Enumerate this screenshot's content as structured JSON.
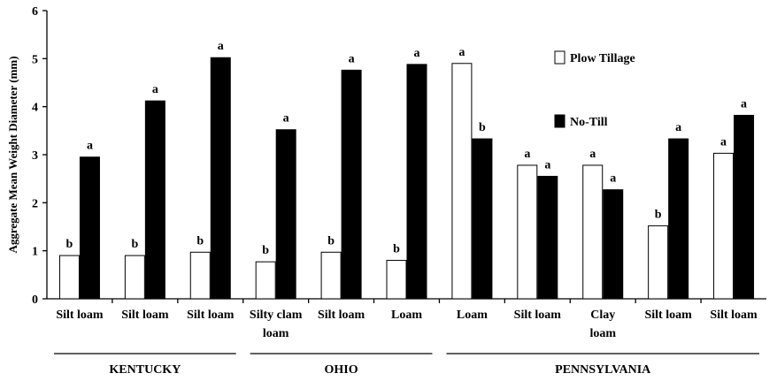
{
  "chart_data": {
    "type": "bar",
    "title": "",
    "xlabel": "",
    "ylabel": "Aggregate Mean Weight Diameter (mm)",
    "ylim": [
      0,
      6
    ],
    "yticks": [
      0,
      1,
      2,
      3,
      4,
      5,
      6
    ],
    "grid": false,
    "legend_position": "top-right",
    "categories": [
      [
        "Silt loam"
      ],
      [
        "Silt loam"
      ],
      [
        "Silt loam"
      ],
      [
        "Silty clam",
        "loam"
      ],
      [
        "Silt loam"
      ],
      [
        "Loam"
      ],
      [
        "Loam"
      ],
      [
        "Silt loam"
      ],
      [
        "Clay",
        "loam"
      ],
      [
        "Silt loam"
      ],
      [
        "Silt loam"
      ]
    ],
    "series": [
      {
        "name": "Plow Tillage",
        "color": "#ffffff",
        "values": [
          0.9,
          0.9,
          0.97,
          0.77,
          0.97,
          0.8,
          4.9,
          2.78,
          2.78,
          1.52,
          3.03
        ],
        "significance": [
          "b",
          "b",
          "b",
          "b",
          "b",
          "b",
          "a",
          "a",
          "a",
          "b",
          "a"
        ]
      },
      {
        "name": "No-Till",
        "color": "#000000",
        "values": [
          2.95,
          4.12,
          5.02,
          3.52,
          4.76,
          4.88,
          3.33,
          2.55,
          2.27,
          3.33,
          3.82
        ],
        "significance": [
          "a",
          "a",
          "a",
          "a",
          "a",
          "a",
          "b",
          "a",
          "a",
          "a",
          "a"
        ]
      }
    ],
    "groups": [
      {
        "name": "KENTUCKY",
        "range": [
          0,
          2
        ]
      },
      {
        "name": "OHIO",
        "range": [
          3,
          5
        ]
      },
      {
        "name": "PENNSYLVANIA",
        "range": [
          6,
          10
        ]
      }
    ]
  }
}
